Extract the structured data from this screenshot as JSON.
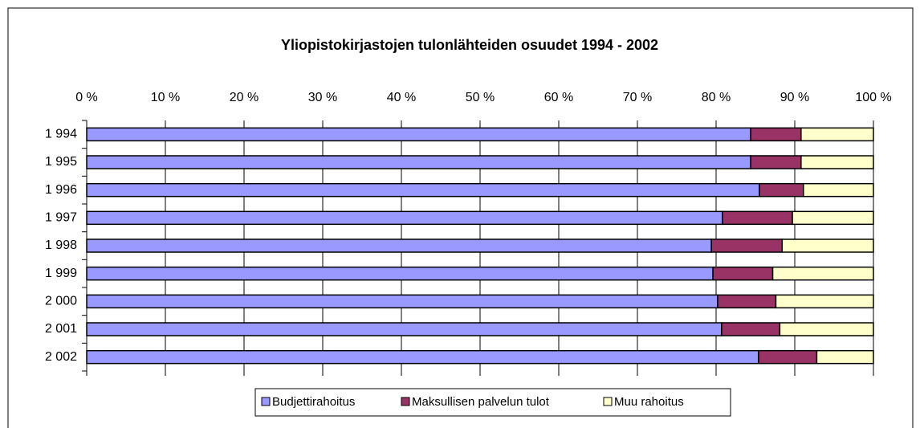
{
  "chart_data": {
    "type": "stacked_bar_horizontal",
    "title": "Yliopistokirjastojen tulonlähteiden osuudet 1994 -  2002",
    "categories": [
      "1 994",
      "1 995",
      "1 996",
      "1 997",
      "1 998",
      "1 999",
      "2 000",
      "2 001",
      "2 002"
    ],
    "series": [
      {
        "name": "Budjettirahoitus",
        "color": "#9999ff",
        "values": [
          84.4,
          84.4,
          85.5,
          80.8,
          79.4,
          79.6,
          80.2,
          80.7,
          85.4
        ]
      },
      {
        "name": "Maksullisen palvelun tulot",
        "color": "#993366",
        "values": [
          6.4,
          6.4,
          5.6,
          8.9,
          9.0,
          7.6,
          7.4,
          7.4,
          7.4
        ]
      },
      {
        "name": "Muu rahoitus",
        "color": "#ffffcc",
        "values": [
          9.2,
          9.2,
          8.9,
          10.3,
          11.6,
          12.8,
          12.4,
          11.9,
          7.2
        ]
      }
    ],
    "xlim": [
      0,
      100
    ],
    "xticks": [
      {
        "value": 0,
        "label": "0 %"
      },
      {
        "value": 10,
        "label": "10 %"
      },
      {
        "value": 20,
        "label": "20 %"
      },
      {
        "value": 30,
        "label": "30 %"
      },
      {
        "value": 40,
        "label": "40 %"
      },
      {
        "value": 50,
        "label": "50 %"
      },
      {
        "value": 60,
        "label": "60 %"
      },
      {
        "value": 70,
        "label": "70 %"
      },
      {
        "value": 80,
        "label": "80 %"
      },
      {
        "value": 90,
        "label": "90 %"
      },
      {
        "value": 100,
        "label": "100 %"
      }
    ],
    "grid": true,
    "legend": "bottom"
  }
}
